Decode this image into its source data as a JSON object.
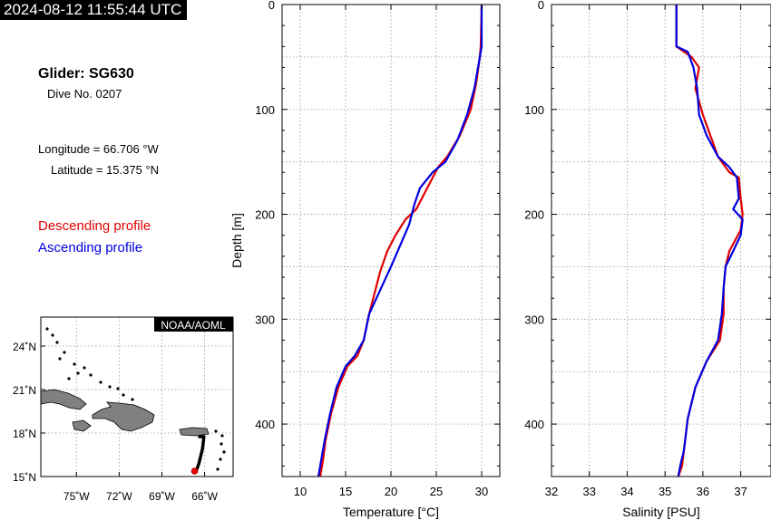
{
  "timestamp": "2024-08-12 11:55:44 UTC",
  "glider": {
    "title": "Glider: SG630",
    "dive": "Dive No. 0207"
  },
  "position": {
    "longitude": "Longitude = 66.706 °W",
    "latitude": "Latitude = 15.375 °N"
  },
  "legend": {
    "descending": "Descending profile",
    "ascending": "Ascending profile",
    "descending_color": "#e00000",
    "ascending_color": "#0000e0"
  },
  "map": {
    "credit": "NOAA/AOML",
    "lon_ticks": [
      -75,
      -72,
      -69,
      -66
    ],
    "lon_labels": [
      "75˚W",
      "72˚W",
      "69˚W",
      "66˚W"
    ],
    "lat_ticks": [
      24,
      21,
      18,
      15
    ],
    "lat_labels": [
      "24˚N",
      "21˚N",
      "18˚N",
      "15˚N"
    ],
    "lon_range": [
      -77.5,
      -64
    ],
    "lat_range": [
      15,
      26
    ],
    "track": [
      [
        -66.45,
        17.75
      ],
      [
        -66.05,
        17.75
      ],
      [
        -66.15,
        16.9
      ],
      [
        -66.4,
        15.9
      ],
      [
        -66.6,
        15.37
      ]
    ],
    "current_position": [
      -66.706,
      15.375
    ]
  },
  "chart_data": [
    {
      "type": "line",
      "xlabel": "Temperature [°C]",
      "ylabel": "Depth [m]",
      "xlim": [
        8,
        32
      ],
      "ylim": [
        450,
        0
      ],
      "xticks": [
        10,
        15,
        20,
        25,
        30
      ],
      "yticks": [
        0,
        100,
        200,
        300,
        400
      ],
      "grid": true,
      "series": [
        {
          "name": "Descending profile",
          "color": "#e00000",
          "x": [
            30.0,
            29.9,
            29.8,
            29.4,
            28.8,
            27.6,
            26.2,
            25.2,
            24.0,
            22.8,
            21.6,
            20.5,
            19.6,
            18.8,
            18.2,
            17.6,
            17.0,
            16.3,
            15.2,
            14.2,
            13.4,
            12.8,
            12.5,
            12.2
          ],
          "y": [
            0,
            40,
            50,
            75,
            100,
            125,
            145,
            155,
            175,
            195,
            205,
            220,
            235,
            255,
            275,
            295,
            320,
            335,
            345,
            365,
            390,
            415,
            435,
            450
          ]
        },
        {
          "name": "Ascending profile",
          "color": "#0000e0",
          "x": [
            30.0,
            30.0,
            29.7,
            29.2,
            28.4,
            27.3,
            26.0,
            24.6,
            23.2,
            22.6,
            22.0,
            21.0,
            20.0,
            19.2,
            18.4,
            17.6,
            17.0,
            16.0,
            15.0,
            14.0,
            13.3,
            12.7,
            12.3,
            12.0
          ],
          "y": [
            0,
            40,
            55,
            80,
            105,
            130,
            150,
            160,
            175,
            190,
            210,
            230,
            250,
            265,
            280,
            295,
            320,
            335,
            345,
            365,
            390,
            415,
            435,
            450
          ]
        }
      ]
    },
    {
      "type": "line",
      "xlabel": "Salinity [PSU]",
      "ylabel": "",
      "xlim": [
        32,
        37.8
      ],
      "ylim": [
        450,
        0
      ],
      "xticks": [
        32,
        33,
        34,
        35,
        36,
        37
      ],
      "yticks": [
        0,
        100,
        200,
        300,
        400
      ],
      "grid": true,
      "series": [
        {
          "name": "Descending profile",
          "color": "#e00000",
          "x": [
            35.3,
            35.3,
            35.7,
            35.9,
            35.8,
            36.0,
            36.2,
            36.4,
            36.6,
            36.7,
            36.95,
            37.0,
            37.05,
            37.0,
            36.7,
            36.6,
            36.55,
            36.55,
            36.45,
            36.1,
            35.8,
            35.6,
            35.5,
            35.45,
            35.35
          ],
          "y": [
            0,
            40,
            50,
            60,
            80,
            105,
            125,
            145,
            155,
            160,
            165,
            185,
            200,
            215,
            235,
            250,
            270,
            295,
            320,
            340,
            365,
            395,
            425,
            440,
            450
          ]
        },
        {
          "name": "Ascending profile",
          "color": "#0000e0",
          "x": [
            35.3,
            35.3,
            35.6,
            35.75,
            35.85,
            35.9,
            36.1,
            36.4,
            36.7,
            36.9,
            36.95,
            36.8,
            37.05,
            37.0,
            36.8,
            36.6,
            36.55,
            36.5,
            36.4,
            36.1,
            35.8,
            35.6,
            35.5,
            35.4,
            35.35
          ],
          "y": [
            0,
            40,
            45,
            60,
            80,
            105,
            125,
            145,
            155,
            165,
            185,
            195,
            205,
            220,
            235,
            250,
            270,
            295,
            320,
            340,
            365,
            395,
            425,
            440,
            450
          ]
        }
      ]
    }
  ]
}
